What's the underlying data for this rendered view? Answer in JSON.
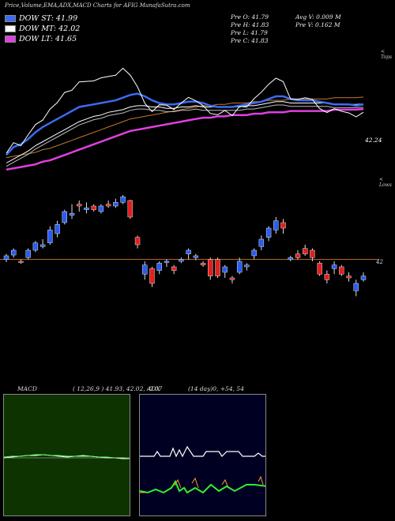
{
  "header": {
    "title": "Price,Volume,EMA,ADX,MACD Charts for AFIG MunafaSutra.com"
  },
  "legend": [
    {
      "label": "DOW ST: 41.99",
      "color": "#3a6cf0"
    },
    {
      "label": "DOW MT: 42.02",
      "color": "#ffffff"
    },
    {
      "label": "DOW LT: 41.65",
      "color": "#e040e0"
    }
  ],
  "stats": {
    "pre_o": "Pre  O: 41.79",
    "pre_h": "Pre  H: 41.83",
    "pre_l": "Pre  L: 41.79",
    "pre_c": "Pre  C: 41.83",
    "avg_v": "Avg V: 0.009  M",
    "pre_v": "Pre  V: 0.162  M"
  },
  "side_labels": {
    "top": "< Tops",
    "lows": "< Lows",
    "price_42": "42",
    "level": "42.24"
  },
  "macd": {
    "label": "MACD",
    "params": "( 12,26,9 ) 41.93, 42.02, -0.07",
    "panel_color": "#0d3300"
  },
  "adx": {
    "label": "ADX",
    "params": "(14  day)0, +54, 54",
    "panel_color": "#000022"
  },
  "chart_data": {
    "type": "candlestick",
    "candles": [
      {
        "o": 42.0,
        "h": 42.15,
        "l": 41.93,
        "c": 42.1,
        "dir": "up"
      },
      {
        "o": 42.12,
        "h": 42.3,
        "l": 42.05,
        "c": 42.25,
        "dir": "up"
      },
      {
        "o": 41.95,
        "h": 42.0,
        "l": 41.88,
        "c": 41.92,
        "dir": "down"
      },
      {
        "o": 42.05,
        "h": 42.3,
        "l": 42.0,
        "c": 42.25,
        "dir": "up"
      },
      {
        "o": 42.25,
        "h": 42.5,
        "l": 42.2,
        "c": 42.45,
        "dir": "up"
      },
      {
        "o": 42.35,
        "h": 42.55,
        "l": 42.3,
        "c": 42.4,
        "dir": "up"
      },
      {
        "o": 42.45,
        "h": 42.9,
        "l": 42.4,
        "c": 42.8,
        "dir": "up"
      },
      {
        "o": 42.7,
        "h": 43.05,
        "l": 42.6,
        "c": 42.95,
        "dir": "up"
      },
      {
        "o": 43.0,
        "h": 43.35,
        "l": 42.95,
        "c": 43.3,
        "dir": "up"
      },
      {
        "o": 43.25,
        "h": 43.5,
        "l": 43.1,
        "c": 43.2,
        "dir": "up"
      },
      {
        "o": 43.5,
        "h": 43.6,
        "l": 43.3,
        "c": 43.45,
        "dir": "down"
      },
      {
        "o": 43.35,
        "h": 43.55,
        "l": 43.25,
        "c": 43.4,
        "dir": "up"
      },
      {
        "o": 43.45,
        "h": 43.5,
        "l": 43.3,
        "c": 43.35,
        "dir": "down"
      },
      {
        "o": 43.3,
        "h": 43.5,
        "l": 43.25,
        "c": 43.45,
        "dir": "up"
      },
      {
        "o": 43.5,
        "h": 43.6,
        "l": 43.4,
        "c": 43.45,
        "dir": "down"
      },
      {
        "o": 43.55,
        "h": 43.65,
        "l": 43.4,
        "c": 43.45,
        "dir": "up"
      },
      {
        "o": 43.55,
        "h": 43.75,
        "l": 43.5,
        "c": 43.7,
        "dir": "up"
      },
      {
        "o": 43.6,
        "h": 43.62,
        "l": 43.1,
        "c": 43.15,
        "dir": "down"
      },
      {
        "o": 42.6,
        "h": 42.65,
        "l": 42.3,
        "c": 42.4,
        "dir": "down"
      },
      {
        "o": 41.85,
        "h": 41.95,
        "l": 41.45,
        "c": 41.6,
        "dir": "up"
      },
      {
        "o": 41.75,
        "h": 41.8,
        "l": 41.25,
        "c": 41.35,
        "dir": "down"
      },
      {
        "o": 41.7,
        "h": 41.95,
        "l": 41.6,
        "c": 41.9,
        "dir": "up"
      },
      {
        "o": 41.95,
        "h": 42.0,
        "l": 41.8,
        "c": 41.95,
        "dir": "up"
      },
      {
        "o": 41.8,
        "h": 41.85,
        "l": 41.6,
        "c": 41.7,
        "dir": "down"
      },
      {
        "o": 41.95,
        "h": 42.05,
        "l": 41.9,
        "c": 42.0,
        "dir": "up"
      },
      {
        "o": 42.15,
        "h": 42.3,
        "l": 42.0,
        "c": 42.25,
        "dir": "up"
      },
      {
        "o": 42.1,
        "h": 42.15,
        "l": 41.98,
        "c": 42.05,
        "dir": "up"
      },
      {
        "o": 41.9,
        "h": 41.95,
        "l": 41.8,
        "c": 41.85,
        "dir": "down"
      },
      {
        "o": 42.0,
        "h": 42.05,
        "l": 41.45,
        "c": 41.55,
        "dir": "down"
      },
      {
        "o": 42.0,
        "h": 42.05,
        "l": 41.5,
        "c": 41.55,
        "dir": "down"
      },
      {
        "o": 41.65,
        "h": 41.85,
        "l": 41.5,
        "c": 41.8,
        "dir": "up"
      },
      {
        "o": 41.45,
        "h": 41.55,
        "l": 41.35,
        "c": 41.5,
        "dir": "down"
      },
      {
        "o": 41.65,
        "h": 42.05,
        "l": 41.6,
        "c": 41.95,
        "dir": "up"
      },
      {
        "o": 41.8,
        "h": 41.9,
        "l": 41.7,
        "c": 41.85,
        "dir": "up"
      },
      {
        "o": 42.1,
        "h": 42.3,
        "l": 42.0,
        "c": 42.25,
        "dir": "up"
      },
      {
        "o": 42.35,
        "h": 42.65,
        "l": 42.25,
        "c": 42.55,
        "dir": "up"
      },
      {
        "o": 42.6,
        "h": 42.9,
        "l": 42.5,
        "c": 42.85,
        "dir": "up"
      },
      {
        "o": 42.8,
        "h": 43.15,
        "l": 42.7,
        "c": 43.05,
        "dir": "up"
      },
      {
        "o": 43.0,
        "h": 43.1,
        "l": 42.7,
        "c": 42.85,
        "dir": "down"
      },
      {
        "o": 42.05,
        "h": 42.1,
        "l": 41.95,
        "c": 42.0,
        "dir": "up"
      },
      {
        "o": 42.15,
        "h": 42.25,
        "l": 42.0,
        "c": 42.05,
        "dir": "down"
      },
      {
        "o": 42.3,
        "h": 42.4,
        "l": 42.1,
        "c": 42.15,
        "dir": "down"
      },
      {
        "o": 42.25,
        "h": 42.3,
        "l": 41.95,
        "c": 42.05,
        "dir": "down"
      },
      {
        "o": 41.9,
        "h": 41.95,
        "l": 41.55,
        "c": 41.6,
        "dir": "down"
      },
      {
        "o": 41.6,
        "h": 41.7,
        "l": 41.35,
        "c": 41.45,
        "dir": "down"
      },
      {
        "o": 41.85,
        "h": 41.95,
        "l": 41.6,
        "c": 41.75,
        "dir": "up"
      },
      {
        "o": 41.8,
        "h": 41.85,
        "l": 41.55,
        "c": 41.6,
        "dir": "down"
      },
      {
        "o": 41.55,
        "h": 41.65,
        "l": 41.4,
        "c": 41.5,
        "dir": "down"
      },
      {
        "o": 41.15,
        "h": 41.45,
        "l": 41.0,
        "c": 41.35,
        "dir": "up"
      },
      {
        "o": 41.45,
        "h": 41.65,
        "l": 41.4,
        "c": 41.55,
        "dir": "up"
      }
    ],
    "reference_price": 42.0,
    "price_range": [
      40.9,
      43.9
    ],
    "dow_st": [
      38.2,
      38.8,
      39.0,
      39.4,
      39.9,
      40.3,
      40.6,
      40.9,
      41.2,
      41.5,
      41.8,
      41.9,
      42.0,
      42.1,
      42.2,
      42.3,
      42.5,
      42.7,
      42.8,
      42.6,
      42.3,
      42.1,
      42.0,
      42.0,
      42.1,
      42.2,
      42.2,
      42.1,
      41.9,
      41.8,
      41.8,
      41.8,
      41.9,
      42.0,
      42.1,
      42.2,
      42.4,
      42.6,
      42.6,
      42.4,
      42.3,
      42.3,
      42.3,
      42.2,
      42.1,
      42.0,
      42.0,
      42.0,
      41.9,
      41.99
    ],
    "dow_mt": [
      37.6,
      37.9,
      38.2,
      38.5,
      38.9,
      39.2,
      39.5,
      39.8,
      40.1,
      40.4,
      40.7,
      40.9,
      41.1,
      41.2,
      41.4,
      41.5,
      41.6,
      41.8,
      41.9,
      41.9,
      41.8,
      41.8,
      41.7,
      41.7,
      41.8,
      41.8,
      41.9,
      41.8,
      41.8,
      41.8,
      41.8,
      41.8,
      41.8,
      41.9,
      41.9,
      42.0,
      42.1,
      42.2,
      42.2,
      42.1,
      42.1,
      42.1,
      42.1,
      42.1,
      42.1,
      42.0,
      42.0,
      42.0,
      42.0,
      42.02
    ],
    "dow_lt": [
      37.1,
      37.2,
      37.3,
      37.4,
      37.5,
      37.7,
      37.8,
      38.0,
      38.2,
      38.4,
      38.6,
      38.8,
      39.0,
      39.2,
      39.4,
      39.6,
      39.8,
      40.0,
      40.1,
      40.2,
      40.3,
      40.4,
      40.5,
      40.6,
      40.7,
      40.8,
      40.9,
      41.0,
      41.0,
      41.1,
      41.1,
      41.2,
      41.2,
      41.2,
      41.3,
      41.3,
      41.4,
      41.4,
      41.4,
      41.5,
      41.5,
      41.5,
      41.5,
      41.5,
      41.5,
      41.6,
      41.6,
      41.6,
      41.6,
      41.65
    ]
  }
}
